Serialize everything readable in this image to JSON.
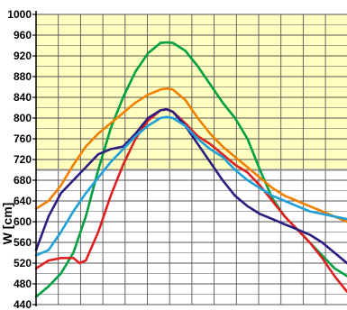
{
  "chart_data": {
    "type": "line",
    "title": "",
    "xlabel": "",
    "ylabel": "W [cm]",
    "ylim": [
      440,
      1000
    ],
    "xlim": [
      0,
      50
    ],
    "yticks": [
      440,
      480,
      520,
      560,
      600,
      640,
      680,
      720,
      760,
      800,
      840,
      880,
      920,
      960,
      1000
    ],
    "grid": true,
    "legend": "none",
    "threshold": {
      "value": 700,
      "color": "#8c8c8c"
    },
    "colors": {
      "above_threshold": "#ffffc0",
      "below_threshold": "#ffffff",
      "grid": "#555555"
    },
    "series": [
      {
        "color": "#00a040",
        "x": [
          0,
          2,
          4,
          6,
          8,
          10,
          12,
          14,
          16,
          18,
          20,
          21,
          22,
          24,
          26,
          28,
          30,
          32,
          34,
          36,
          38,
          40,
          42,
          44,
          46,
          48,
          50
        ],
        "y": [
          455,
          475,
          500,
          540,
          610,
          700,
          780,
          840,
          890,
          925,
          945,
          946,
          945,
          930,
          900,
          865,
          830,
          800,
          760,
          700,
          645,
          610,
          585,
          560,
          535,
          510,
          495
        ]
      },
      {
        "color": "#f08000",
        "x": [
          0,
          2,
          4,
          6,
          8,
          10,
          12,
          14,
          16,
          18,
          20,
          21,
          22,
          24,
          26,
          28,
          30,
          32,
          34,
          36,
          38,
          40,
          42,
          44,
          46,
          48,
          50
        ],
        "y": [
          625,
          640,
          670,
          710,
          745,
          770,
          790,
          810,
          830,
          845,
          855,
          857,
          855,
          835,
          800,
          770,
          745,
          725,
          705,
          685,
          665,
          650,
          640,
          630,
          620,
          610,
          600
        ]
      },
      {
        "color": "#e02020",
        "x": [
          0,
          2,
          4,
          6,
          7,
          8,
          10,
          12,
          14,
          16,
          18,
          20,
          21,
          22,
          24,
          26,
          28,
          30,
          32,
          34,
          36,
          38,
          40,
          42,
          44,
          46,
          48,
          50
        ],
        "y": [
          510,
          525,
          530,
          530,
          520,
          525,
          580,
          650,
          710,
          760,
          795,
          815,
          817,
          812,
          790,
          765,
          750,
          730,
          710,
          695,
          670,
          640,
          610,
          585,
          560,
          530,
          495,
          465
        ]
      },
      {
        "color": "#2a1e80",
        "x": [
          0,
          2,
          4,
          6,
          8,
          10,
          12,
          14,
          16,
          18,
          20,
          21,
          22,
          24,
          26,
          28,
          30,
          32,
          34,
          36,
          38,
          40,
          42,
          44,
          46,
          48,
          50
        ],
        "y": [
          545,
          610,
          655,
          680,
          705,
          730,
          740,
          745,
          770,
          800,
          815,
          817,
          812,
          785,
          750,
          715,
          680,
          650,
          630,
          615,
          605,
          595,
          585,
          575,
          560,
          540,
          520
        ]
      },
      {
        "color": "#20a0d8",
        "x": [
          0,
          2,
          4,
          6,
          8,
          10,
          12,
          14,
          16,
          18,
          20,
          21,
          22,
          24,
          26,
          28,
          30,
          32,
          34,
          36,
          38,
          40,
          42,
          44,
          46,
          48,
          50
        ],
        "y": [
          535,
          545,
          580,
          620,
          655,
          685,
          715,
          740,
          765,
          785,
          800,
          802,
          800,
          785,
          760,
          740,
          725,
          700,
          680,
          665,
          650,
          640,
          630,
          620,
          615,
          610,
          605
        ]
      }
    ]
  }
}
